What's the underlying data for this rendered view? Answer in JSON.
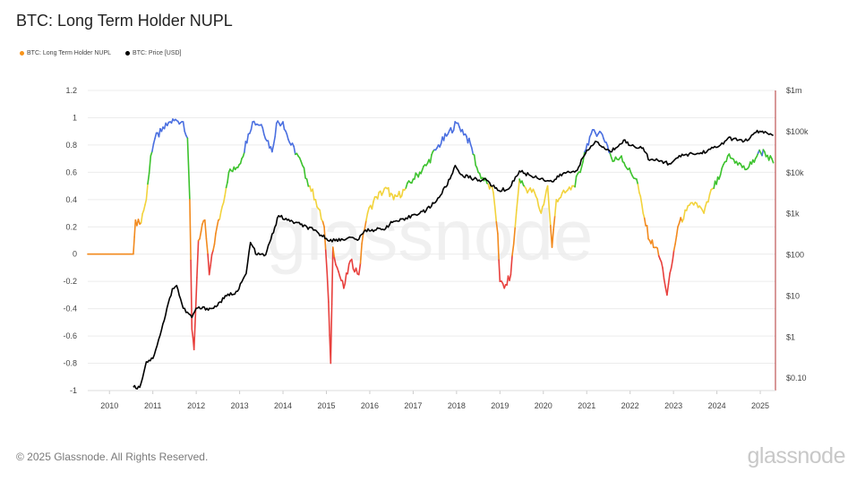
{
  "title": "BTC: Long Term Holder NUPL",
  "footer": "© 2025 Glassnode. All Rights Reserved.",
  "brand": "glassnode",
  "watermark": "glassnode",
  "legend": [
    {
      "label": "BTC: Long Term Holder NUPL",
      "color": "#f7931a"
    },
    {
      "label": "BTC: Price [USD]",
      "color": "#000000"
    }
  ],
  "chart_data": {
    "type": "line",
    "xlabel": "",
    "ylabel": "",
    "x_ticks": [
      "2010",
      "2011",
      "2012",
      "2013",
      "2014",
      "2015",
      "2016",
      "2017",
      "2018",
      "2019",
      "2020",
      "2021",
      "2022",
      "2023",
      "2024",
      "2025"
    ],
    "y_left": {
      "ticks": [
        "1.2",
        "1",
        "0.8",
        "0.6",
        "0.4",
        "0.2",
        "0",
        "-0.2",
        "-0.4",
        "-0.6",
        "-0.8",
        "-1"
      ],
      "range": [
        -1,
        1.2
      ]
    },
    "y_right": {
      "ticks": [
        "$1m",
        "$100k",
        "$10k",
        "$1k",
        "$100",
        "$10",
        "$1",
        "$0.10"
      ],
      "scale": "log",
      "range": [
        0.05,
        1000000
      ]
    },
    "grid": true,
    "legend_position": "top-left",
    "zone_colors": {
      "capitulation": "#e8403d",
      "hope_fear": "#f28a1e",
      "optimism_anxiety": "#f2d33c",
      "belief_denial": "#3cc22d",
      "euphoria_greed": "#4a6fe0"
    },
    "series": [
      {
        "name": "BTC: Long Term Holder NUPL",
        "axis": "left",
        "points": [
          [
            2009.5,
            0
          ],
          [
            2010.55,
            0
          ],
          [
            2010.6,
            0.25
          ],
          [
            2010.7,
            0.22
          ],
          [
            2010.85,
            0.4
          ],
          [
            2010.95,
            0.72
          ],
          [
            2011.05,
            0.85
          ],
          [
            2011.2,
            0.9
          ],
          [
            2011.4,
            0.97
          ],
          [
            2011.55,
            0.98
          ],
          [
            2011.7,
            0.97
          ],
          [
            2011.8,
            0.85
          ],
          [
            2011.85,
            0.4
          ],
          [
            2011.9,
            -0.55
          ],
          [
            2011.95,
            -0.7
          ],
          [
            2012.05,
            0.1
          ],
          [
            2012.2,
            0.25
          ],
          [
            2012.3,
            -0.15
          ],
          [
            2012.45,
            0.15
          ],
          [
            2012.6,
            0.35
          ],
          [
            2012.75,
            0.6
          ],
          [
            2012.9,
            0.62
          ],
          [
            2013.05,
            0.7
          ],
          [
            2013.2,
            0.88
          ],
          [
            2013.3,
            0.97
          ],
          [
            2013.5,
            0.95
          ],
          [
            2013.75,
            0.75
          ],
          [
            2013.85,
            0.96
          ],
          [
            2014.0,
            0.97
          ],
          [
            2014.15,
            0.82
          ],
          [
            2014.35,
            0.72
          ],
          [
            2014.55,
            0.55
          ],
          [
            2014.75,
            0.4
          ],
          [
            2014.95,
            0.2
          ],
          [
            2015.05,
            -0.35
          ],
          [
            2015.1,
            -0.8
          ],
          [
            2015.15,
            0.05
          ],
          [
            2015.25,
            -0.1
          ],
          [
            2015.4,
            -0.25
          ],
          [
            2015.55,
            -0.05
          ],
          [
            2015.75,
            -0.15
          ],
          [
            2015.85,
            0.15
          ],
          [
            2015.95,
            0.3
          ],
          [
            2016.15,
            0.42
          ],
          [
            2016.4,
            0.48
          ],
          [
            2016.55,
            0.4
          ],
          [
            2016.8,
            0.47
          ],
          [
            2017.0,
            0.55
          ],
          [
            2017.3,
            0.65
          ],
          [
            2017.55,
            0.78
          ],
          [
            2017.8,
            0.88
          ],
          [
            2018.0,
            0.96
          ],
          [
            2018.2,
            0.88
          ],
          [
            2018.35,
            0.78
          ],
          [
            2018.5,
            0.6
          ],
          [
            2018.7,
            0.52
          ],
          [
            2018.85,
            0.45
          ],
          [
            2018.95,
            0.15
          ],
          [
            2019.0,
            -0.2
          ],
          [
            2019.1,
            -0.25
          ],
          [
            2019.25,
            -0.15
          ],
          [
            2019.35,
            0.2
          ],
          [
            2019.45,
            0.55
          ],
          [
            2019.6,
            0.48
          ],
          [
            2019.8,
            0.45
          ],
          [
            2019.95,
            0.3
          ],
          [
            2020.1,
            0.5
          ],
          [
            2020.2,
            0.05
          ],
          [
            2020.3,
            0.4
          ],
          [
            2020.5,
            0.45
          ],
          [
            2020.7,
            0.5
          ],
          [
            2020.85,
            0.6
          ],
          [
            2020.95,
            0.75
          ],
          [
            2021.1,
            0.88
          ],
          [
            2021.3,
            0.9
          ],
          [
            2021.45,
            0.82
          ],
          [
            2021.6,
            0.68
          ],
          [
            2021.8,
            0.72
          ],
          [
            2021.95,
            0.62
          ],
          [
            2022.15,
            0.55
          ],
          [
            2022.3,
            0.3
          ],
          [
            2022.45,
            0.1
          ],
          [
            2022.6,
            0.05
          ],
          [
            2022.75,
            -0.1
          ],
          [
            2022.85,
            -0.3
          ],
          [
            2022.95,
            -0.1
          ],
          [
            2023.1,
            0.2
          ],
          [
            2023.3,
            0.32
          ],
          [
            2023.5,
            0.38
          ],
          [
            2023.7,
            0.3
          ],
          [
            2023.9,
            0.48
          ],
          [
            2024.05,
            0.55
          ],
          [
            2024.25,
            0.72
          ],
          [
            2024.45,
            0.68
          ],
          [
            2024.65,
            0.62
          ],
          [
            2024.8,
            0.66
          ],
          [
            2024.95,
            0.74
          ],
          [
            2025.1,
            0.75
          ],
          [
            2025.3,
            0.67
          ]
        ]
      },
      {
        "name": "BTC: Price [USD]",
        "axis": "right",
        "color": "#000000",
        "points": [
          [
            2010.55,
            0.06
          ],
          [
            2010.7,
            0.06
          ],
          [
            2010.85,
            0.25
          ],
          [
            2011.0,
            0.3
          ],
          [
            2011.2,
            1.5
          ],
          [
            2011.45,
            15
          ],
          [
            2011.55,
            18
          ],
          [
            2011.7,
            5
          ],
          [
            2011.9,
            3
          ],
          [
            2012.0,
            5
          ],
          [
            2012.4,
            5
          ],
          [
            2012.7,
            10
          ],
          [
            2012.95,
            13
          ],
          [
            2013.15,
            35
          ],
          [
            2013.25,
            200
          ],
          [
            2013.4,
            100
          ],
          [
            2013.6,
            100
          ],
          [
            2013.9,
            900
          ],
          [
            2014.1,
            700
          ],
          [
            2014.4,
            550
          ],
          [
            2014.7,
            400
          ],
          [
            2015.0,
            250
          ],
          [
            2015.2,
            220
          ],
          [
            2015.5,
            260
          ],
          [
            2015.75,
            240
          ],
          [
            2015.9,
            400
          ],
          [
            2016.3,
            420
          ],
          [
            2016.55,
            650
          ],
          [
            2016.8,
            700
          ],
          [
            2017.0,
            950
          ],
          [
            2017.3,
            1200
          ],
          [
            2017.6,
            2500
          ],
          [
            2017.85,
            7000
          ],
          [
            2017.97,
            15000
          ],
          [
            2018.1,
            9000
          ],
          [
            2018.4,
            7000
          ],
          [
            2018.7,
            6500
          ],
          [
            2018.95,
            3700
          ],
          [
            2019.2,
            4000
          ],
          [
            2019.45,
            11000
          ],
          [
            2019.7,
            8500
          ],
          [
            2019.95,
            7200
          ],
          [
            2020.2,
            6000
          ],
          [
            2020.45,
            9500
          ],
          [
            2020.75,
            11000
          ],
          [
            2020.97,
            29000
          ],
          [
            2021.2,
            58000
          ],
          [
            2021.45,
            36000
          ],
          [
            2021.55,
            32000
          ],
          [
            2021.85,
            62000
          ],
          [
            2022.0,
            46000
          ],
          [
            2022.3,
            40000
          ],
          [
            2022.45,
            20000
          ],
          [
            2022.7,
            19500
          ],
          [
            2022.9,
            16500
          ],
          [
            2023.1,
            23000
          ],
          [
            2023.3,
            28000
          ],
          [
            2023.6,
            29000
          ],
          [
            2023.85,
            37000
          ],
          [
            2024.05,
            44000
          ],
          [
            2024.25,
            68000
          ],
          [
            2024.5,
            62000
          ],
          [
            2024.7,
            60000
          ],
          [
            2024.9,
            95000
          ],
          [
            2025.05,
            102000
          ],
          [
            2025.2,
            85000
          ],
          [
            2025.3,
            80000
          ]
        ]
      }
    ]
  }
}
